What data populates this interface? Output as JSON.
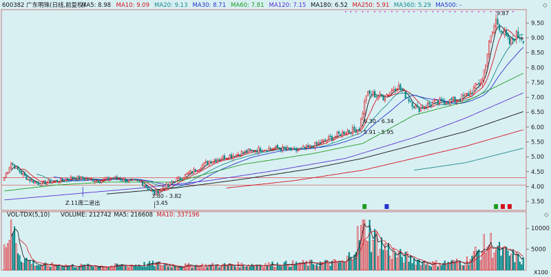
{
  "header": {
    "stock_label": "600382 广东明珠(日线,前复权)",
    "ma_items": [
      {
        "label": "MA5: 8.98",
        "color": "#111111"
      },
      {
        "label": "MA10: 9.09",
        "color": "#d4141e"
      },
      {
        "label": "MA20: 9.13",
        "color": "#1a8a8a"
      },
      {
        "label": "MA30: 8.71",
        "color": "#2233cc"
      },
      {
        "label": "MA60: 7.81",
        "color": "#1f9b1f"
      },
      {
        "label": "MA120: 7.15",
        "color": "#5a2fd0"
      },
      {
        "label": "MA180: 6.52",
        "color": "#111111"
      },
      {
        "label": "MA250: 5.91",
        "color": "#d4141e"
      },
      {
        "label": "MA360: 5.29",
        "color": "#1a8a8a"
      },
      {
        "label": "MA500: -",
        "color": "#2233cc"
      }
    ]
  },
  "volume_header": {
    "label": "VOL-TDX(5,10)",
    "items": [
      {
        "label": "VOLUME: 212742",
        "color": "#111111"
      },
      {
        "label": "MA5: 216608",
        "color": "#111111"
      },
      {
        "label": "MA10: 337196",
        "color": "#d4141e"
      }
    ]
  },
  "annotations": {
    "high": "9.87",
    "low": "3.45",
    "range1": "3.80 - 3.82",
    "range2": "6.30 - 6.34",
    "range3": "5.91 - 5.95",
    "note": "Z.11周二退出",
    "unit": "X100"
  },
  "colors": {
    "background": "#d9f0f3",
    "up": "#e0141e",
    "down": "#0d8a8a",
    "grid": "#e06060"
  },
  "chart_data": [
    {
      "type": "candlestick",
      "title": "600382 广东明珠(日线,前复权)",
      "y_ticks": [
        3.5,
        4.0,
        4.5,
        5.0,
        5.5,
        6.0,
        6.5,
        7.0,
        7.5,
        8.0,
        8.5,
        9.0,
        9.5
      ],
      "ylim": [
        3.2,
        9.95
      ],
      "reference_lines": [
        4.3,
        4.05
      ],
      "close_keypoints": [
        [
          0,
          4.3
        ],
        [
          4,
          4.8
        ],
        [
          8,
          4.55
        ],
        [
          14,
          4.25
        ],
        [
          20,
          4.1
        ],
        [
          26,
          4.15
        ],
        [
          32,
          4.2
        ],
        [
          40,
          4.3
        ],
        [
          48,
          4.25
        ],
        [
          56,
          4.2
        ],
        [
          64,
          4.3
        ],
        [
          72,
          4.2
        ],
        [
          80,
          4.15
        ],
        [
          88,
          3.75
        ],
        [
          94,
          4.0
        ],
        [
          100,
          4.2
        ],
        [
          110,
          4.5
        ],
        [
          120,
          4.85
        ],
        [
          130,
          5.0
        ],
        [
          140,
          5.15
        ],
        [
          150,
          5.25
        ],
        [
          160,
          5.3
        ],
        [
          170,
          5.2
        ],
        [
          180,
          5.35
        ],
        [
          190,
          5.6
        ],
        [
          200,
          5.85
        ],
        [
          208,
          5.95
        ],
        [
          212,
          7.1
        ],
        [
          216,
          7.1
        ],
        [
          222,
          7.0
        ],
        [
          230,
          7.4
        ],
        [
          236,
          7.0
        ],
        [
          242,
          6.6
        ],
        [
          248,
          6.75
        ],
        [
          256,
          6.85
        ],
        [
          264,
          6.9
        ],
        [
          272,
          7.1
        ],
        [
          280,
          7.6
        ],
        [
          284,
          8.8
        ],
        [
          288,
          9.6
        ],
        [
          292,
          9.2
        ],
        [
          296,
          8.8
        ],
        [
          300,
          9.1
        ],
        [
          304,
          8.98
        ]
      ],
      "moving_averages": [
        {
          "name": "MA60",
          "color": "#1f9b1f",
          "points": [
            [
              0,
              3.85
            ],
            [
              30,
              4.05
            ],
            [
              60,
              4.15
            ],
            [
              100,
              4.15
            ],
            [
              140,
              4.75
            ],
            [
              180,
              5.1
            ],
            [
              210,
              5.45
            ],
            [
              240,
              6.4
            ],
            [
              270,
              6.85
            ],
            [
              304,
              7.81
            ]
          ]
        },
        {
          "name": "MA120",
          "color": "#5a2fd0",
          "points": [
            [
              0,
              3.55
            ],
            [
              40,
              3.75
            ],
            [
              80,
              3.95
            ],
            [
              120,
              4.2
            ],
            [
              160,
              4.55
            ],
            [
              200,
              4.95
            ],
            [
              240,
              5.65
            ],
            [
              270,
              6.3
            ],
            [
              304,
              7.15
            ]
          ]
        },
        {
          "name": "MA180",
          "color": "#111111",
          "points": [
            [
              60,
              3.75
            ],
            [
              100,
              3.95
            ],
            [
              140,
              4.25
            ],
            [
              180,
              4.6
            ],
            [
              210,
              4.95
            ],
            [
              240,
              5.4
            ],
            [
              270,
              5.85
            ],
            [
              304,
              6.52
            ]
          ]
        },
        {
          "name": "MA250",
          "color": "#d4141e",
          "points": [
            [
              130,
              3.95
            ],
            [
              170,
              4.2
            ],
            [
              210,
              4.55
            ],
            [
              240,
              4.95
            ],
            [
              270,
              5.35
            ],
            [
              304,
              5.91
            ]
          ]
        },
        {
          "name": "MA360",
          "color": "#1a8a8a",
          "points": [
            [
              240,
              4.55
            ],
            [
              270,
              4.8
            ],
            [
              304,
              5.29
            ]
          ]
        }
      ]
    },
    {
      "type": "bar",
      "title": "VOL-TDX(5,10)",
      "y_ticks": [
        5000,
        10000
      ],
      "ylim": [
        0,
        12000
      ],
      "volume_keypoints": [
        [
          0,
          6000
        ],
        [
          4,
          11000
        ],
        [
          10,
          3000
        ],
        [
          20,
          1200
        ],
        [
          60,
          900
        ],
        [
          90,
          1500
        ],
        [
          100,
          1000
        ],
        [
          150,
          1300
        ],
        [
          200,
          1800
        ],
        [
          212,
          11500
        ],
        [
          216,
          7500
        ],
        [
          230,
          3500
        ],
        [
          250,
          1500
        ],
        [
          270,
          2000
        ],
        [
          284,
          6500
        ],
        [
          290,
          4500
        ],
        [
          300,
          3000
        ],
        [
          304,
          2127
        ]
      ]
    }
  ]
}
